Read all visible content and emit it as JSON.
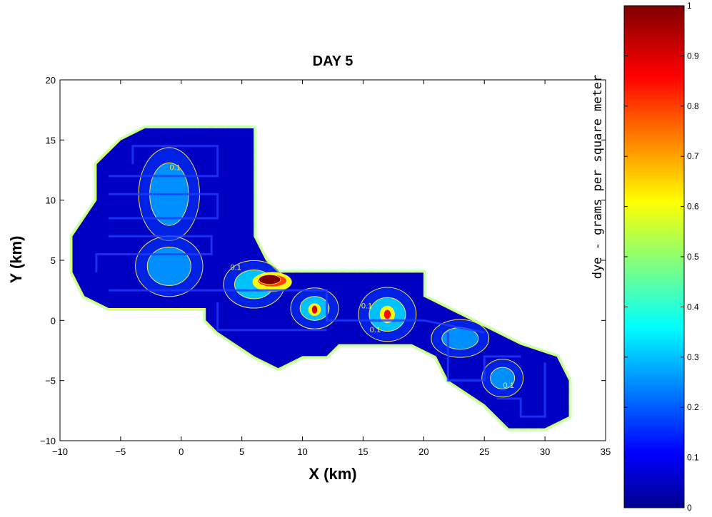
{
  "chart_data": {
    "type": "heatmap",
    "title": "DAY 5",
    "xlabel": "X (km)",
    "ylabel": "Y (km)",
    "xlim": [
      -10,
      35
    ],
    "ylim": [
      -10,
      20
    ],
    "xticks": [
      -10,
      -5,
      0,
      5,
      10,
      15,
      20,
      25,
      30,
      35
    ],
    "yticks": [
      -10,
      -5,
      0,
      5,
      10,
      15,
      20
    ],
    "grid": false,
    "colorbar": {
      "label": "dye - grams per square meter",
      "range": [
        0,
        1
      ],
      "ticks": [
        0,
        0.1,
        0.2,
        0.3,
        0.4,
        0.5,
        0.6,
        0.7,
        0.8,
        0.9,
        1
      ],
      "colormap": "jet"
    },
    "domain_outline": [
      [
        -9,
        7
      ],
      [
        -7,
        10
      ],
      [
        -7,
        13
      ],
      [
        -5,
        15
      ],
      [
        -3,
        16
      ],
      [
        6,
        16
      ],
      [
        6,
        7
      ],
      [
        7,
        5
      ],
      [
        8,
        4
      ],
      [
        20,
        4
      ],
      [
        20,
        2
      ],
      [
        22,
        1
      ],
      [
        24,
        0
      ],
      [
        26,
        -1
      ],
      [
        28,
        -2
      ],
      [
        31,
        -3
      ],
      [
        32,
        -5
      ],
      [
        32,
        -8
      ],
      [
        30,
        -9
      ],
      [
        27,
        -9
      ],
      [
        25,
        -7
      ],
      [
        22,
        -5
      ],
      [
        21,
        -3
      ],
      [
        19,
        -2
      ],
      [
        13,
        -2
      ],
      [
        12,
        -3
      ],
      [
        10,
        -3
      ],
      [
        8,
        -4
      ],
      [
        6,
        -3
      ],
      [
        3,
        -1
      ],
      [
        2,
        0
      ],
      [
        2,
        1
      ],
      [
        -6,
        1
      ],
      [
        -8,
        2
      ],
      [
        -9,
        4
      ]
    ],
    "background_level": 0.05,
    "blobs": [
      {
        "x": -1.0,
        "y": 10.5,
        "rx": 1.6,
        "ry": 2.6,
        "value": 0.25
      },
      {
        "x": -1.0,
        "y": 4.5,
        "rx": 1.8,
        "ry": 1.6,
        "value": 0.25
      },
      {
        "x": 6.0,
        "y": 3.0,
        "rx": 1.6,
        "ry": 1.2,
        "value": 0.3
      },
      {
        "x": 7.5,
        "y": 3.2,
        "rx": 1.6,
        "ry": 0.8,
        "value": 0.6
      },
      {
        "x": 7.5,
        "y": 3.3,
        "rx": 1.2,
        "ry": 0.5,
        "value": 0.8
      },
      {
        "x": 7.3,
        "y": 3.4,
        "rx": 0.9,
        "ry": 0.4,
        "value": 1.0
      },
      {
        "x": 11.0,
        "y": 1.0,
        "rx": 1.2,
        "ry": 1.0,
        "value": 0.3
      },
      {
        "x": 11.0,
        "y": 0.9,
        "rx": 0.5,
        "ry": 0.5,
        "value": 0.6
      },
      {
        "x": 11.0,
        "y": 0.9,
        "rx": 0.25,
        "ry": 0.35,
        "value": 0.9
      },
      {
        "x": 17.0,
        "y": 0.5,
        "rx": 1.5,
        "ry": 1.4,
        "value": 0.3
      },
      {
        "x": 17.0,
        "y": 0.5,
        "rx": 0.6,
        "ry": 0.7,
        "value": 0.6
      },
      {
        "x": 17.0,
        "y": 0.5,
        "rx": 0.3,
        "ry": 0.4,
        "value": 0.85
      },
      {
        "x": 23.0,
        "y": -1.5,
        "rx": 1.5,
        "ry": 0.9,
        "value": 0.25
      },
      {
        "x": 26.5,
        "y": -4.8,
        "rx": 1.0,
        "ry": 0.9,
        "value": 0.25
      }
    ],
    "contour_labels": [
      {
        "x": -0.5,
        "y": 12.5,
        "text": "0.1"
      },
      {
        "x": 4.5,
        "y": 4.2,
        "text": "0.1"
      },
      {
        "x": 15.3,
        "y": 1.0,
        "text": "0.1"
      },
      {
        "x": 16.0,
        "y": -1.0,
        "text": "0.1"
      },
      {
        "x": 27.0,
        "y": -5.6,
        "text": "0.1"
      }
    ],
    "contour_levels": [
      0.1
    ]
  }
}
